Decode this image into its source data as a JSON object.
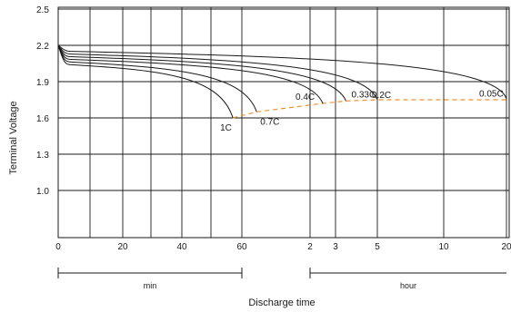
{
  "chart_data": {
    "type": "line",
    "title": "",
    "ylabel": "Terminal Voltage",
    "xlabel": "Discharge time",
    "ylim": [
      1.0,
      2.5
    ],
    "y_ticks": [
      "2.5",
      "2.2",
      "1.9",
      "1.6",
      "1.3",
      "1.0"
    ],
    "x_ticks": [
      "0",
      "20",
      "40",
      "60",
      "2",
      "3",
      "5",
      "10",
      "20"
    ],
    "x_ranges": [
      {
        "label": "min",
        "from": "0",
        "to": "60"
      },
      {
        "label": "hour",
        "from": "2",
        "to": "20"
      }
    ],
    "grid": true,
    "series": [
      {
        "name": "1C",
        "end_tick": 50,
        "end_voltage": 1.6
      },
      {
        "name": "0.7C",
        "end_tick": 61,
        "end_voltage": 1.65
      },
      {
        "name": "0.4C",
        "end_tick": 84,
        "end_voltage": 1.72
      },
      {
        "name": "0.33C",
        "end_tick": 91,
        "end_voltage": 1.74
      },
      {
        "name": "0.2C",
        "end_tick": 105,
        "end_voltage": 1.75
      },
      {
        "name": "0.05C",
        "end_tick": 150,
        "end_voltage": 1.76
      }
    ],
    "cutoff_line": {
      "color": "#f0912e",
      "style": "dashed"
    },
    "colors": {
      "curve": "#1a1a1a",
      "grid": "#1a1a1a",
      "cutoff": "#f0912e"
    }
  }
}
